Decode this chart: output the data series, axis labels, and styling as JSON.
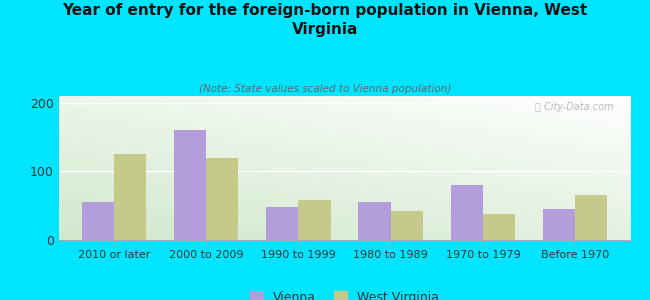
{
  "title": "Year of entry for the foreign-born population in Vienna, West\nVirginia",
  "subtitle": "(Note: State values scaled to Vienna population)",
  "categories": [
    "2010 or later",
    "2000 to 2009",
    "1990 to 1999",
    "1980 to 1989",
    "1970 to 1979",
    "Before 1970"
  ],
  "vienna_values": [
    55,
    160,
    48,
    55,
    80,
    45
  ],
  "wv_values": [
    125,
    120,
    58,
    42,
    38,
    65
  ],
  "vienna_color": "#b39ddb",
  "wv_color": "#c5c98a",
  "background_outer": "#00e5ff",
  "ylim": [
    0,
    210
  ],
  "yticks": [
    0,
    100,
    200
  ],
  "bar_width": 0.35,
  "watermark": "Ⓢ City-Data.com"
}
